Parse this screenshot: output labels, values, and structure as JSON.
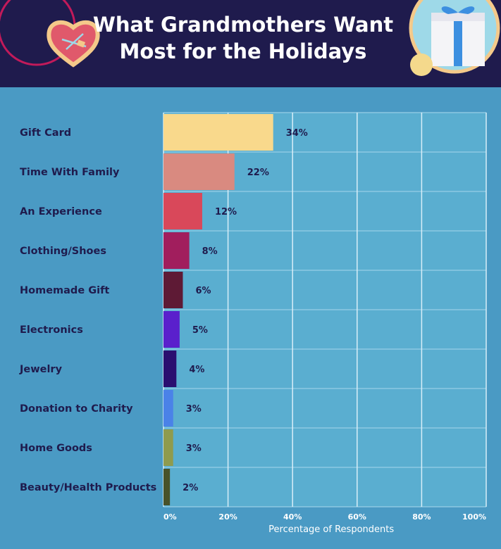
{
  "header": {
    "title_line1": "What Grandmothers Want",
    "title_line2": "Most for the Holidays"
  },
  "chart_data": {
    "type": "bar",
    "orientation": "horizontal",
    "title": "What Grandmothers Want Most for the Holidays",
    "xlabel": "Percentage of Respondents",
    "ylabel": "",
    "xlim": [
      0,
      100
    ],
    "xticks": [
      0,
      20,
      40,
      60,
      80,
      100
    ],
    "tick_suffix": "%",
    "grid": true,
    "categories": [
      "Gift Card",
      "Time With Family",
      "An Experience",
      "Clothing/Shoes",
      "Homemade Gift",
      "Electronics",
      "Jewelry",
      "Donation to Charity",
      "Home Goods",
      "Beauty/Health Products"
    ],
    "values": [
      34,
      22,
      12,
      8,
      6,
      5,
      4,
      3,
      3,
      2
    ],
    "value_labels": [
      "34%",
      "22%",
      "12%",
      "8%",
      "6%",
      "5%",
      "4%",
      "3%",
      "3%",
      "2%"
    ],
    "colors": [
      "#f9d98c",
      "#d98a80",
      "#d9485a",
      "#a11e5d",
      "#5e1a35",
      "#5a20cc",
      "#2a0f70",
      "#4a82e8",
      "#8f9b4e",
      "#48522a"
    ]
  }
}
